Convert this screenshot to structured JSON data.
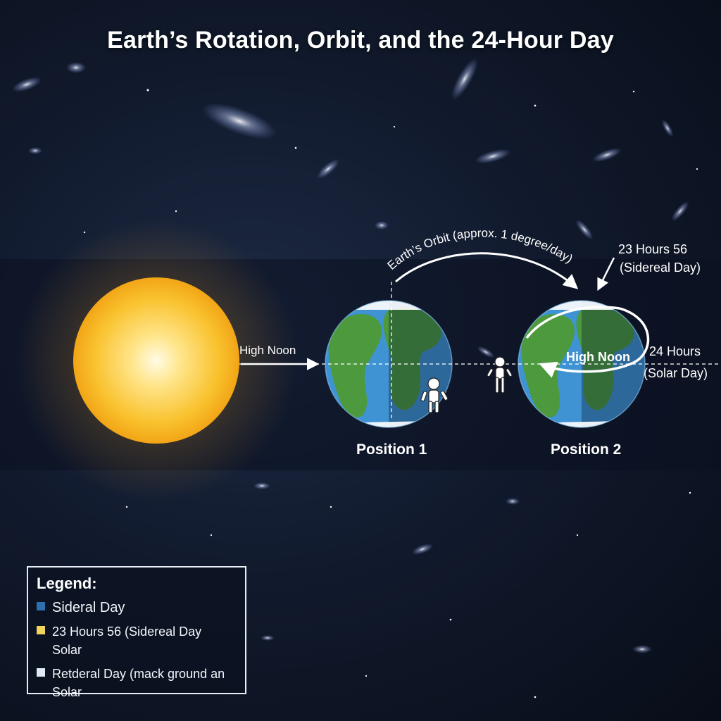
{
  "title": "Earth’s Rotation, Orbit, and the 24-Hour Day",
  "labels": {
    "high_noon_left": "High Noon",
    "high_noon_right": "High Noon",
    "orbit_arc": "Earth’s Orbit (approx. 1 degree/day)",
    "sidereal_line1": "23 Hours 56",
    "sidereal_line2": "(Sidereal Day)",
    "solar_line1": "24 Hours",
    "solar_line2": "(Solar Day)",
    "position1": "Position 1",
    "position2": "Position 2"
  },
  "legend": {
    "title": "Legend:",
    "items": [
      {
        "color": "#2f6fb0",
        "line1": "Sideral Day",
        "line2": ""
      },
      {
        "color": "#f2d35c",
        "line1": "23 Hours 56 (Sidereal Day",
        "line2": "Solar"
      },
      {
        "color": "#dfeaf2",
        "line1": "Retderal Day (mack ground an",
        "line2": "Solar"
      }
    ]
  },
  "colors": {
    "sun": "#f7b52a",
    "ocean": "#3f93d2",
    "land": "#4c9a3d",
    "band": "#0b1120"
  },
  "icons": {
    "sun": "sun-icon",
    "earth": "earth-globe-icon",
    "person": "person-icon"
  }
}
